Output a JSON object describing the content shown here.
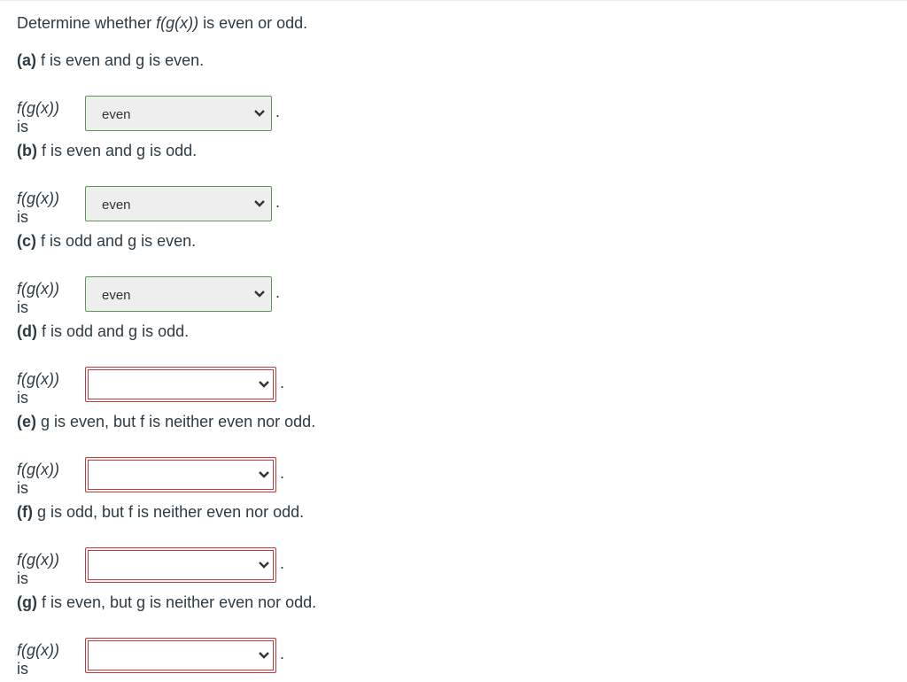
{
  "title_prefix": "Determine whether ",
  "title_func": "f(g(x))",
  "title_suffix": " is even or odd.",
  "prompt_prefix": "f(g(x))",
  "prompt_suffix": " is",
  "parts": [
    {
      "letter": "(a)",
      "text": " f is even and g is even.",
      "value": "even",
      "state": "correct"
    },
    {
      "letter": "(b)",
      "text": " f is even and g is odd.",
      "value": "even",
      "state": "correct"
    },
    {
      "letter": "(c)",
      "text": " f is odd and g is even.",
      "value": "even",
      "state": "correct"
    },
    {
      "letter": "(d)",
      "text": " f is odd and g is odd.",
      "value": "",
      "state": "incorrect"
    },
    {
      "letter": "(e)",
      "text": " g is even, but f is neither even nor odd.",
      "value": "",
      "state": "incorrect"
    },
    {
      "letter": "(f)",
      "text": " g is odd, but f is neither even nor odd.",
      "value": "",
      "state": "incorrect"
    },
    {
      "letter": "(g)",
      "text": " f is even, but g is neither even nor odd.",
      "value": "",
      "state": "incorrect"
    }
  ],
  "colors": {
    "correct": "#5a9a55",
    "incorrect": "#c0393b"
  }
}
